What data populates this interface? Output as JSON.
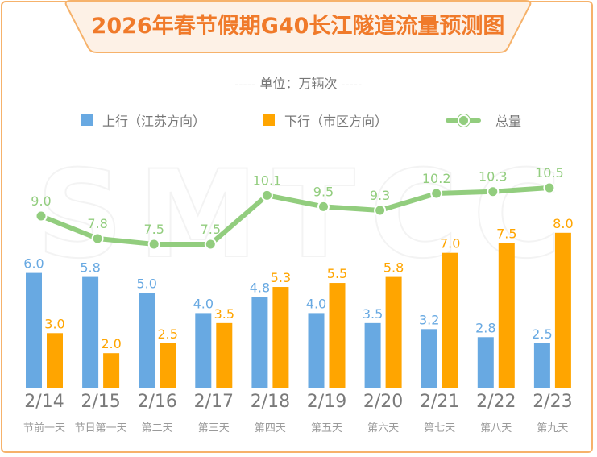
{
  "title": "2026年春节假期G40长江隧道流量预测图",
  "unit": {
    "dashes_left": "-----",
    "label": "单位：万辆次",
    "dashes_right": "-----"
  },
  "watermark": "SMTCC",
  "legend": [
    {
      "label": "上行（江苏方向）",
      "color": "#68a9e2",
      "kind": "bar"
    },
    {
      "label": "下行（市区方向）",
      "color": "#ffa500",
      "kind": "bar"
    },
    {
      "label": "总量",
      "color": "#92cd7e",
      "kind": "line"
    }
  ],
  "chart_data": {
    "type": "bar",
    "title": "2026年春节假期G40长江隧道流量预测图",
    "subtitle": "单位：万辆次",
    "categories": [
      "2/14",
      "2/15",
      "2/16",
      "2/17",
      "2/18",
      "2/19",
      "2/20",
      "2/21",
      "2/22",
      "2/23"
    ],
    "sub_labels": [
      "节前一天",
      "节日第一天",
      "第二天",
      "第三天",
      "第四天",
      "第五天",
      "第六天",
      "第七天",
      "第八天",
      "第九天"
    ],
    "series": [
      {
        "name": "上行（江苏方向）",
        "type": "bar",
        "color": "#68a9e2",
        "values": [
          6.0,
          5.8,
          5.0,
          4.0,
          4.8,
          4.0,
          3.5,
          3.2,
          2.8,
          2.5
        ],
        "labels": [
          "6.0",
          "5.8",
          "5.0",
          "4.0",
          "4.8",
          "4.0",
          "3.5",
          "3.2",
          "2.8",
          "2.5"
        ]
      },
      {
        "name": "下行（市区方向）",
        "type": "bar",
        "color": "#ffa500",
        "values": [
          3.0,
          2.0,
          2.5,
          3.5,
          5.3,
          5.5,
          5.8,
          7.0,
          7.5,
          8.0
        ],
        "labels": [
          "3.0",
          "2.0",
          "2.5",
          "3.5",
          "5.3",
          "5.5",
          "5.8",
          "7.0",
          "7.5",
          "8.0"
        ]
      },
      {
        "name": "总量",
        "type": "line",
        "color": "#92cd7e",
        "values": [
          9.0,
          7.8,
          7.5,
          7.5,
          10.1,
          9.5,
          9.3,
          10.2,
          10.3,
          10.5
        ],
        "labels": [
          "9.0",
          "7.8",
          "7.5",
          "7.5",
          "10.1",
          "9.5",
          "9.3",
          "10.2",
          "10.3",
          "10.5"
        ]
      }
    ],
    "xlabel": "",
    "ylabel": "",
    "grid": false,
    "legend_position": "top"
  }
}
